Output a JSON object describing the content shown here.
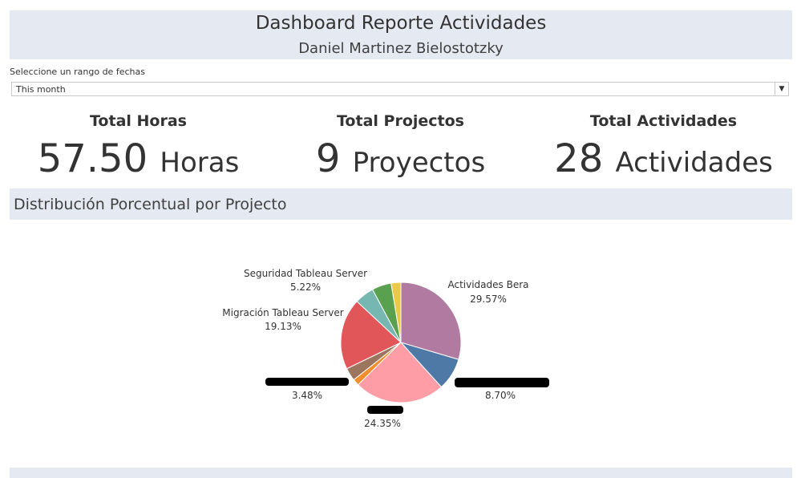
{
  "header": {
    "title": "Dashboard Reporte Actividades",
    "subtitle": "Daniel Martinez Bielostotzky"
  },
  "filter": {
    "label": "Seleccione un rango de fechas",
    "selected": "This month",
    "arrow_icon": "triangle-down"
  },
  "kpis": [
    {
      "title": "Total Horas",
      "value": "57.50",
      "unit": "Horas"
    },
    {
      "title": "Total Projectos",
      "value": "9",
      "unit": "Proyectos"
    },
    {
      "title": "Total Actividades",
      "value": "28",
      "unit": "Actividades"
    }
  ],
  "section": {
    "title": "Distribución Porcentual por Projecto"
  },
  "chart_data": {
    "type": "pie",
    "slices": [
      {
        "name": "Actividades Bera",
        "value": 29.57,
        "label": "29.57%",
        "color": "#b07aa1"
      },
      {
        "name": "",
        "value": 8.7,
        "label": "8.70%",
        "color": "#4e79a7",
        "redacted": true
      },
      {
        "name": "",
        "value": 24.35,
        "label": "24.35%",
        "color": "#ff9da7",
        "redacted": true
      },
      {
        "name": "",
        "value": 1.74,
        "label": "",
        "color": "#f28e2b"
      },
      {
        "name": "",
        "value": 3.48,
        "label": "3.48%",
        "color": "#9c755f",
        "redacted": true
      },
      {
        "name": "Migración Tableau Server",
        "value": 19.13,
        "label": "19.13%",
        "color": "#e15759"
      },
      {
        "name": "",
        "value": 5.22,
        "label": "",
        "color": "#76b7b2"
      },
      {
        "name": "Seguridad Tableau Server",
        "value": 5.22,
        "label": "5.22%",
        "color": "#59a14f"
      },
      {
        "name": "",
        "value": 2.61,
        "label": "",
        "color": "#edc948"
      }
    ]
  }
}
